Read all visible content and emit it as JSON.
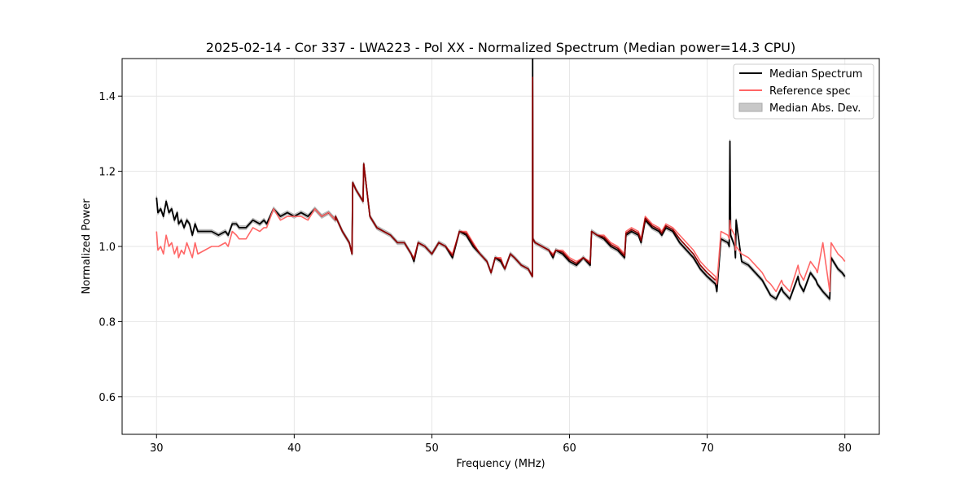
{
  "chart_data": {
    "type": "line",
    "title": "2025-02-14 - Cor 337 - LWA223 - Pol XX - Normalized Spectrum (Median power=14.3 CPU)",
    "xlabel": "Frequency (MHz)",
    "ylabel": "Normalized Power",
    "xlim": [
      27.5,
      82.5
    ],
    "ylim": [
      0.5,
      1.5
    ],
    "xticks": [
      30,
      40,
      50,
      60,
      70,
      80
    ],
    "yticks": [
      0.6,
      0.8,
      1.0,
      1.2,
      1.4
    ],
    "xtick_labels": [
      "30",
      "40",
      "50",
      "60",
      "70",
      "80"
    ],
    "ytick_labels": [
      "0.6",
      "0.8",
      "1.0",
      "1.2",
      "1.4"
    ],
    "grid": true,
    "legend_position": "top-right",
    "colors": {
      "median": "#000000",
      "reference": "#ff6666",
      "overlap": "#8b0000",
      "mad": "#c8c8c8"
    },
    "series": [
      {
        "name": "Median Spectrum",
        "x": [
          30.0,
          30.1,
          30.3,
          30.5,
          30.7,
          30.9,
          31.1,
          31.3,
          31.5,
          31.6,
          31.8,
          32.0,
          32.2,
          32.4,
          32.6,
          32.8,
          33.0,
          33.5,
          34.0,
          34.5,
          35.0,
          35.2,
          35.5,
          35.8,
          36.0,
          36.5,
          37.0,
          37.5,
          37.8,
          38.0,
          38.5,
          39.0,
          39.5,
          40.0,
          40.5,
          41.0,
          41.5,
          42.0,
          42.5,
          43.0,
          43.0,
          43.5,
          44.0,
          44.2,
          44.25,
          44.5,
          45.0,
          45.05,
          45.5,
          46.0,
          47.0,
          47.5,
          48.0,
          48.5,
          48.7,
          49.0,
          49.5,
          50.0,
          50.5,
          51.0,
          51.5,
          52.0,
          52.5,
          53.0,
          53.5,
          54.0,
          54.3,
          54.6,
          55.0,
          55.3,
          55.7,
          56.0,
          56.5,
          57.0,
          57.3,
          57.32,
          57.34,
          57.5,
          58.0,
          58.5,
          58.8,
          59.0,
          59.5,
          60.0,
          60.5,
          61.0,
          61.5,
          61.6,
          62.0,
          62.5,
          63.0,
          63.5,
          64.0,
          64.1,
          64.5,
          65.0,
          65.2,
          65.5,
          66.0,
          66.5,
          66.7,
          67.0,
          67.5,
          68.0,
          68.5,
          69.0,
          69.5,
          70.0,
          70.6,
          70.7,
          71.0,
          71.5,
          71.6,
          71.65,
          71.7,
          72.0,
          72.05,
          72.1,
          72.5,
          73.0,
          73.5,
          74.0,
          74.3,
          74.6,
          75.0,
          75.4,
          75.5,
          76.0,
          76.6,
          76.7,
          77.0,
          77.5,
          77.9,
          78.0,
          78.4,
          78.9,
          79.0,
          79.5,
          79.8,
          80.0
        ],
        "y": [
          1.13,
          1.09,
          1.1,
          1.08,
          1.12,
          1.09,
          1.1,
          1.07,
          1.09,
          1.06,
          1.07,
          1.05,
          1.07,
          1.06,
          1.03,
          1.06,
          1.04,
          1.04,
          1.04,
          1.03,
          1.04,
          1.03,
          1.06,
          1.06,
          1.05,
          1.05,
          1.07,
          1.06,
          1.07,
          1.06,
          1.1,
          1.08,
          1.09,
          1.08,
          1.09,
          1.08,
          1.1,
          1.08,
          1.09,
          1.07,
          1.08,
          1.04,
          1.01,
          0.98,
          1.17,
          1.15,
          1.12,
          1.22,
          1.08,
          1.05,
          1.03,
          1.01,
          1.01,
          0.98,
          0.96,
          1.01,
          1.0,
          0.98,
          1.01,
          1.0,
          0.97,
          1.04,
          1.03,
          1.0,
          0.98,
          0.96,
          0.93,
          0.97,
          0.96,
          0.94,
          0.98,
          0.97,
          0.95,
          0.94,
          0.92,
          1.5,
          1.02,
          1.01,
          1.0,
          0.99,
          0.97,
          0.99,
          0.98,
          0.96,
          0.95,
          0.97,
          0.95,
          1.04,
          1.03,
          1.02,
          1.0,
          0.99,
          0.97,
          1.03,
          1.04,
          1.03,
          1.01,
          1.07,
          1.05,
          1.04,
          1.03,
          1.05,
          1.04,
          1.01,
          0.99,
          0.97,
          0.94,
          0.92,
          0.9,
          0.88,
          1.02,
          1.01,
          1.0,
          1.28,
          1.03,
          1.0,
          0.97,
          1.07,
          0.96,
          0.95,
          0.93,
          0.91,
          0.89,
          0.87,
          0.86,
          0.89,
          0.88,
          0.86,
          0.92,
          0.9,
          0.88,
          0.93,
          0.91,
          0.9,
          0.88,
          0.86,
          0.97,
          0.94,
          0.93,
          0.92
        ]
      },
      {
        "name": "Reference spec",
        "x": [
          30.0,
          30.1,
          30.3,
          30.5,
          30.7,
          30.9,
          31.1,
          31.3,
          31.5,
          31.6,
          31.8,
          32.0,
          32.2,
          32.4,
          32.6,
          32.8,
          33.0,
          33.5,
          34.0,
          34.5,
          35.0,
          35.2,
          35.5,
          35.8,
          36.0,
          36.5,
          37.0,
          37.5,
          37.8,
          38.0,
          38.5,
          39.0,
          39.5,
          40.0,
          40.5,
          41.0,
          41.5,
          42.0,
          42.5,
          43.0,
          43.0,
          43.5,
          44.0,
          44.2,
          44.25,
          44.5,
          45.0,
          45.05,
          45.5,
          46.0,
          47.0,
          47.5,
          48.0,
          48.5,
          48.7,
          49.0,
          49.5,
          50.0,
          50.5,
          51.0,
          51.5,
          52.0,
          52.5,
          53.0,
          53.5,
          54.0,
          54.3,
          54.6,
          55.0,
          55.3,
          55.7,
          56.0,
          56.5,
          57.0,
          57.3,
          57.32,
          57.34,
          57.5,
          58.0,
          58.5,
          58.8,
          59.0,
          59.5,
          60.0,
          60.5,
          61.0,
          61.5,
          61.6,
          62.0,
          62.5,
          63.0,
          63.5,
          64.0,
          64.1,
          64.5,
          65.0,
          65.2,
          65.5,
          66.0,
          66.5,
          66.7,
          67.0,
          67.5,
          68.0,
          68.5,
          69.0,
          69.5,
          70.0,
          70.6,
          70.7,
          71.0,
          71.5,
          71.6,
          71.65,
          71.7,
          72.0,
          72.05,
          72.1,
          72.5,
          73.0,
          73.5,
          74.0,
          74.3,
          74.6,
          75.0,
          75.4,
          75.5,
          76.0,
          76.6,
          76.7,
          77.0,
          77.5,
          77.9,
          78.0,
          78.4,
          78.9,
          79.0,
          79.5,
          79.8,
          80.0
        ],
        "y": [
          1.04,
          0.99,
          1.0,
          0.98,
          1.03,
          1.0,
          1.01,
          0.98,
          1.0,
          0.97,
          0.99,
          0.98,
          1.01,
          0.99,
          0.97,
          1.01,
          0.98,
          0.99,
          1.0,
          1.0,
          1.01,
          1.0,
          1.04,
          1.03,
          1.02,
          1.02,
          1.05,
          1.04,
          1.05,
          1.05,
          1.1,
          1.07,
          1.08,
          1.08,
          1.08,
          1.07,
          1.1,
          1.08,
          1.09,
          1.07,
          1.08,
          1.04,
          1.01,
          0.98,
          1.17,
          1.15,
          1.12,
          1.22,
          1.08,
          1.05,
          1.03,
          1.01,
          1.01,
          0.98,
          0.97,
          1.01,
          1.0,
          0.98,
          1.01,
          1.0,
          0.98,
          1.04,
          1.04,
          1.01,
          0.98,
          0.96,
          0.93,
          0.97,
          0.97,
          0.94,
          0.98,
          0.97,
          0.95,
          0.94,
          0.92,
          1.4,
          1.02,
          1.01,
          1.0,
          0.99,
          0.98,
          0.99,
          0.99,
          0.97,
          0.96,
          0.97,
          0.96,
          1.04,
          1.03,
          1.03,
          1.01,
          1.0,
          0.98,
          1.04,
          1.05,
          1.04,
          1.02,
          1.08,
          1.06,
          1.05,
          1.04,
          1.06,
          1.05,
          1.03,
          1.01,
          0.99,
          0.96,
          0.94,
          0.92,
          0.9,
          1.04,
          1.03,
          1.02,
          1.07,
          1.05,
          1.03,
          0.99,
          1.0,
          0.98,
          0.97,
          0.95,
          0.93,
          0.91,
          0.9,
          0.88,
          0.91,
          0.9,
          0.88,
          0.95,
          0.93,
          0.91,
          0.96,
          0.94,
          0.93,
          1.01,
          0.88,
          1.01,
          0.98,
          0.97,
          0.96
        ]
      }
    ],
    "mad_band": {
      "name": "Median Abs. Dev.",
      "width": 0.005
    }
  }
}
